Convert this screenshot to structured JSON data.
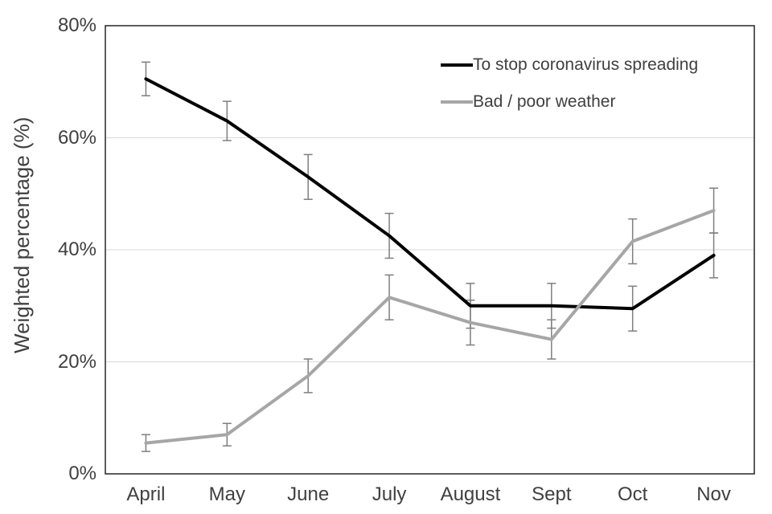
{
  "chart_data": {
    "type": "line",
    "title": "",
    "xlabel": "",
    "ylabel": "Weighted percentage (%)",
    "ylim": [
      0,
      80
    ],
    "y_ticks": [
      0,
      20,
      40,
      60,
      80
    ],
    "y_tick_labels": [
      "0%",
      "20%",
      "40%",
      "60%",
      "80%"
    ],
    "categories": [
      "April",
      "May",
      "June",
      "July",
      "August",
      "Sept",
      "Oct",
      "Nov"
    ],
    "series": [
      {
        "name": "To stop coronavirus spreading",
        "color": "#000000",
        "values": [
          70.5,
          63,
          53,
          42.5,
          30,
          30,
          29.5,
          39
        ],
        "error": [
          3,
          3.5,
          4,
          4,
          4,
          4,
          4,
          4
        ]
      },
      {
        "name": "Bad / poor weather",
        "color": "#a6a6a6",
        "values": [
          5.5,
          7,
          17.5,
          31.5,
          27,
          24,
          41.5,
          47
        ],
        "error": [
          1.5,
          2,
          3,
          4,
          4,
          3.5,
          4,
          4
        ]
      }
    ],
    "error_bars": true,
    "grid": "horizontal",
    "legend_position": "top-right",
    "colors": {
      "error_bar": "#7f7f7f",
      "gridline": "#d9d9d9",
      "plot_border": "#262626",
      "axis_text": "#404040"
    }
  }
}
